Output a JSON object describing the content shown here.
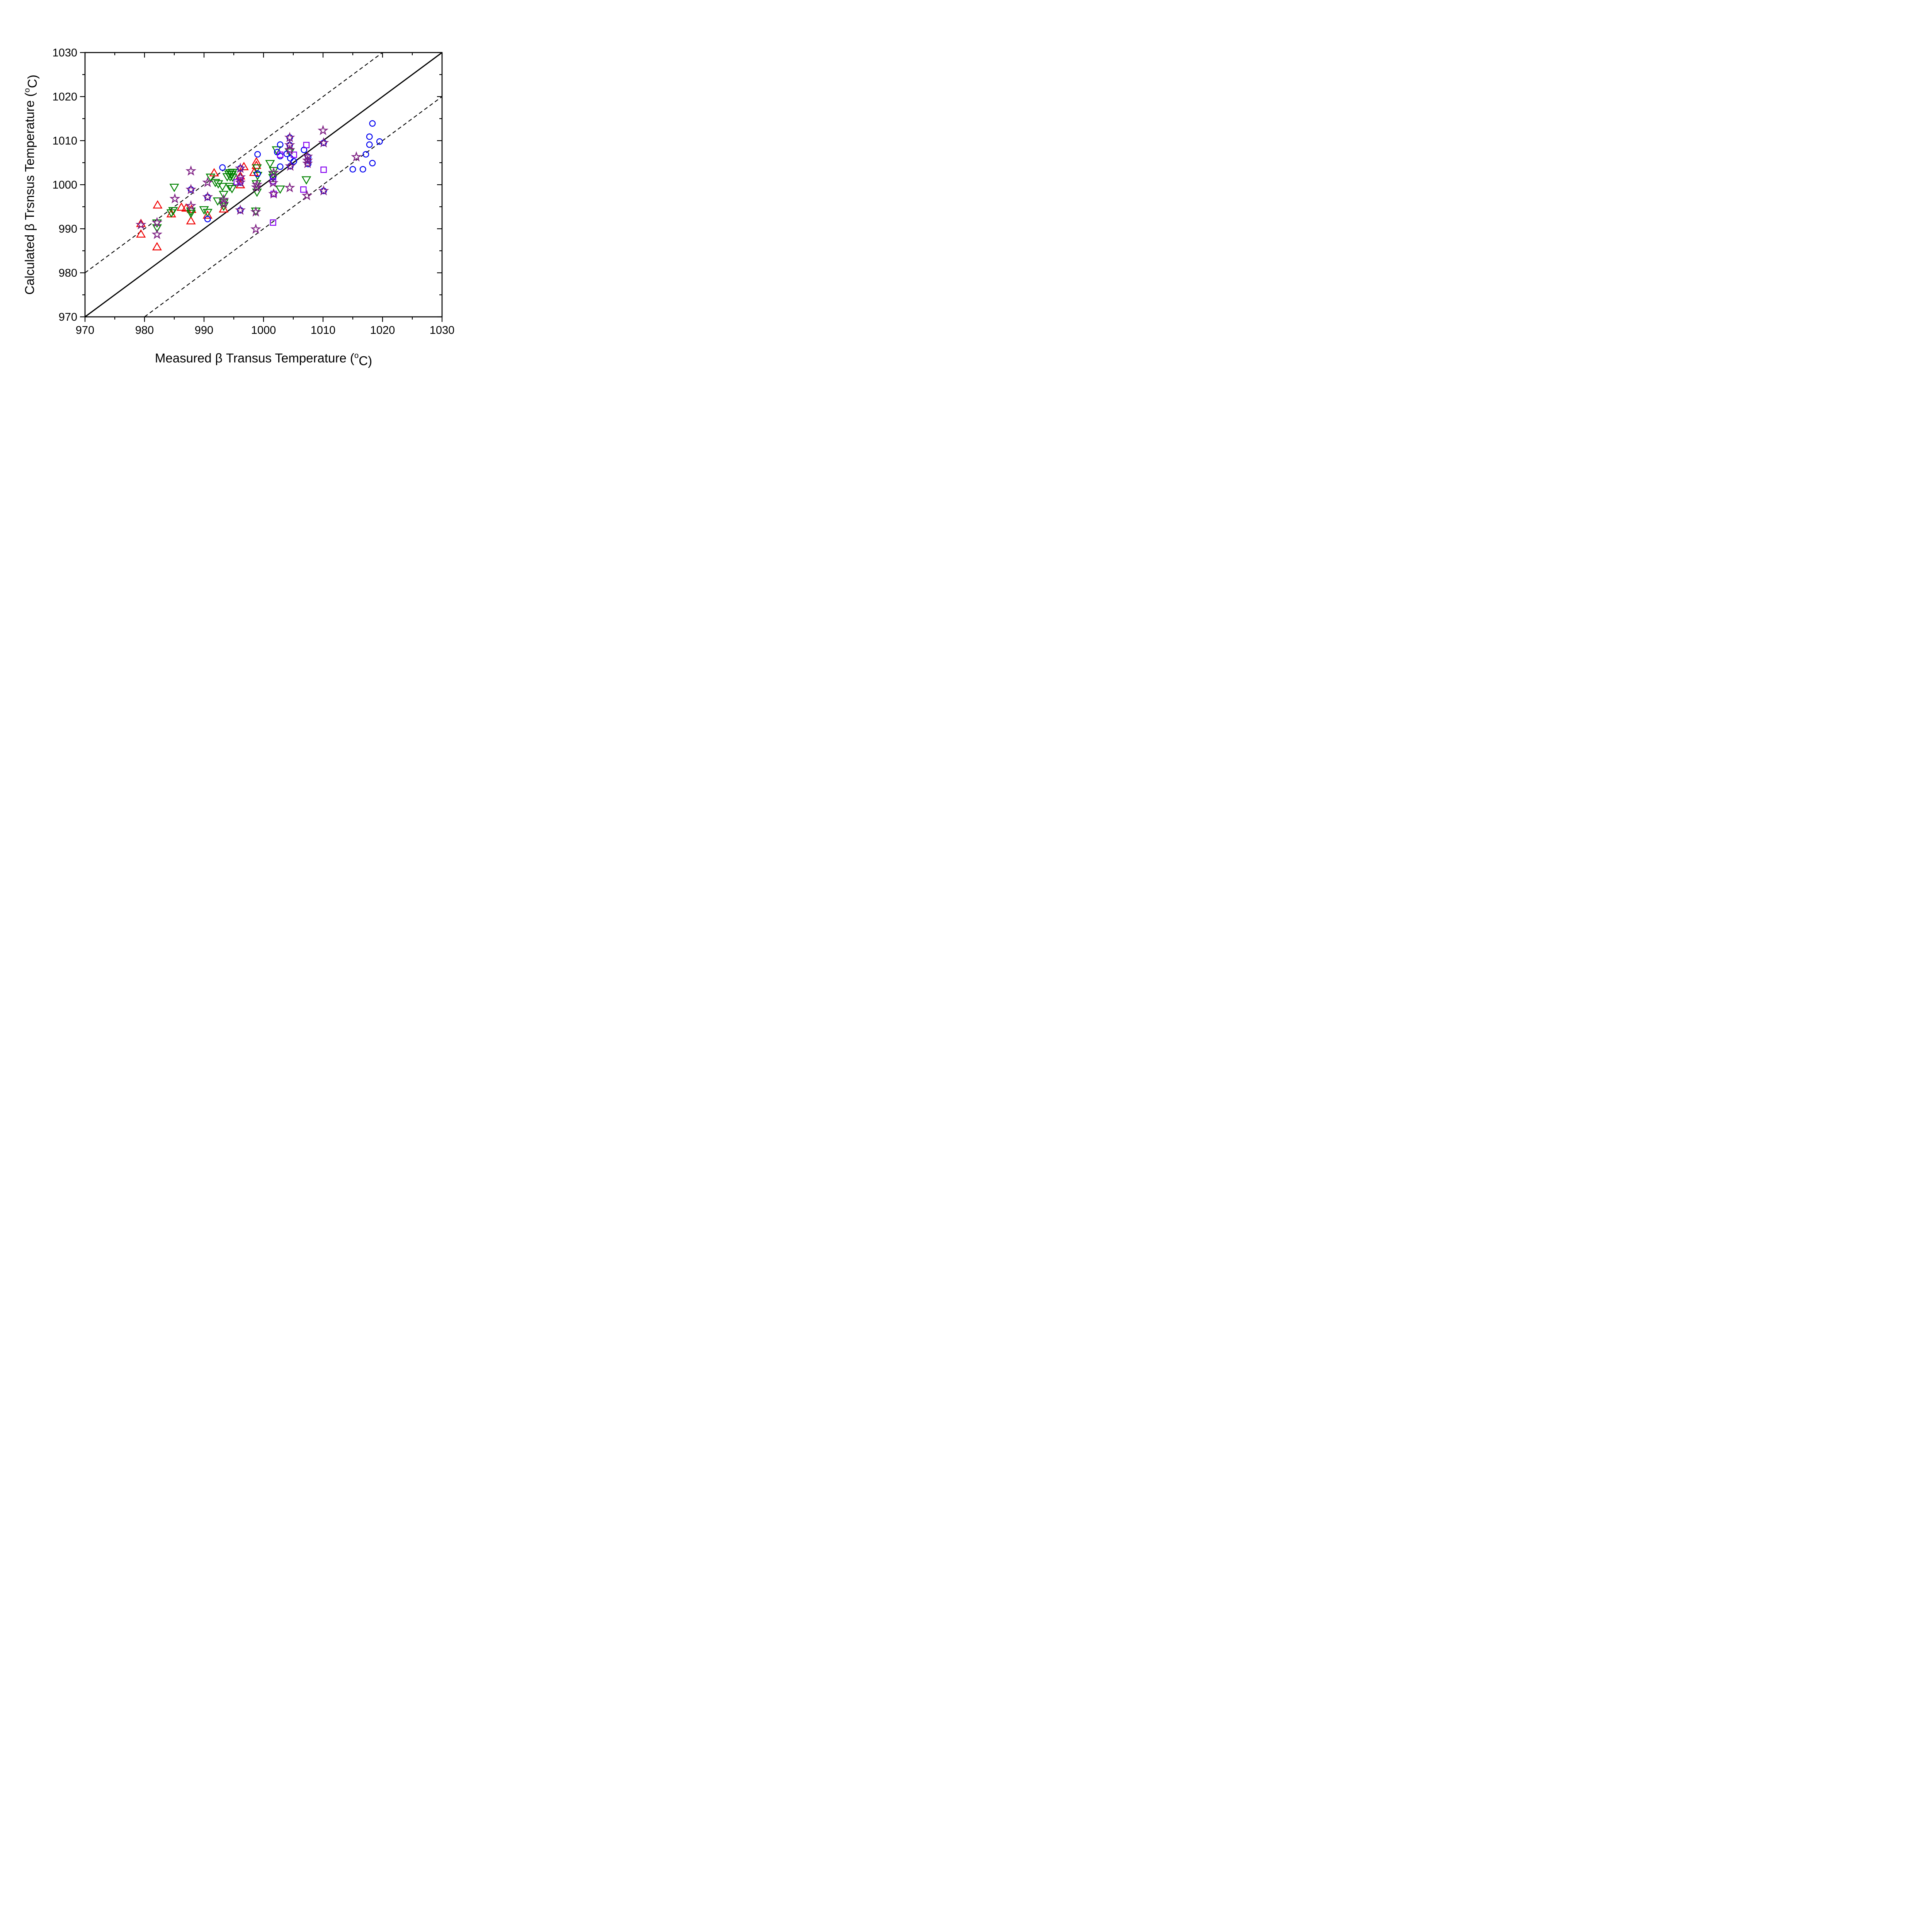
{
  "chart_data": {
    "type": "scatter",
    "title": "",
    "xlabel": {
      "prefix": "Measured β Transus Temperature (",
      "sup": "o",
      "suffix": "C)"
    },
    "ylabel": {
      "prefix": "Calculated β Trsnsus Temperature (",
      "sup": "o",
      "suffix": "C)"
    },
    "xlim": [
      970,
      1030
    ],
    "ylim": [
      970,
      1030
    ],
    "xticks": [
      970,
      980,
      990,
      1000,
      1010,
      1020,
      1030
    ],
    "yticks": [
      970,
      980,
      990,
      1000,
      1010,
      1020,
      1030
    ],
    "xtick_labels": [
      "970",
      "980",
      "990",
      "1000",
      "1010",
      "1020",
      "1030"
    ],
    "ytick_labels": [
      "970",
      "980",
      "990",
      "1000",
      "1010",
      "1020",
      "1030"
    ],
    "minor_step": 5,
    "grid": false,
    "legend": "none",
    "frame_color": "#000000",
    "reference_lines": [
      {
        "name": "identity-line",
        "style": "solid",
        "color": "#000000",
        "points": [
          [
            970,
            970
          ],
          [
            1030,
            1030
          ]
        ]
      },
      {
        "name": "upper-band-line",
        "style": "dashed",
        "color": "#000000",
        "points": [
          [
            970,
            980
          ],
          [
            1020,
            1030
          ]
        ]
      },
      {
        "name": "lower-band-line",
        "style": "dashed",
        "color": "#000000",
        "points": [
          [
            980,
            970
          ],
          [
            1030,
            1020
          ]
        ]
      }
    ],
    "series": [
      {
        "name": "red-up-triangles",
        "marker": "triangle-up",
        "color": "#f00000",
        "points": [
          [
            979.4,
            991.2
          ],
          [
            979.4,
            988.8
          ],
          [
            982.1,
            985.9
          ],
          [
            982.2,
            995.4
          ],
          [
            984.5,
            993.4
          ],
          [
            986.2,
            994.9
          ],
          [
            987.0,
            994.7
          ],
          [
            987.9,
            994.4
          ],
          [
            987.8,
            991.8
          ],
          [
            990.6,
            993.1
          ],
          [
            991.7,
            1002.7
          ],
          [
            993.3,
            994.5
          ],
          [
            996.7,
            1004.1
          ],
          [
            996.1,
            1002.0
          ],
          [
            996.1,
            1000.0
          ],
          [
            998.4,
            1002.8
          ],
          [
            998.8,
            1005.2
          ],
          [
            998.8,
            1004.4
          ]
        ]
      },
      {
        "name": "green-down-triangles",
        "marker": "triangle-down",
        "color": "#008200",
        "points": [
          [
            982.1,
            991.3
          ],
          [
            982.1,
            990.2
          ],
          [
            984.8,
            994.1
          ],
          [
            984.5,
            993.6
          ],
          [
            985.0,
            999.4
          ],
          [
            987.8,
            994.0
          ],
          [
            987.8,
            993.5
          ],
          [
            990.0,
            994.3
          ],
          [
            990.6,
            993.7
          ],
          [
            991.1,
            1001.7
          ],
          [
            991.9,
            1000.5
          ],
          [
            992.4,
            1000.2
          ],
          [
            992.3,
            996.3
          ],
          [
            993.3,
            995.9
          ],
          [
            993.3,
            995.1
          ],
          [
            993.1,
            999.6
          ],
          [
            994.3,
            999.6
          ],
          [
            994.7,
            999.1
          ],
          [
            993.3,
            997.8
          ],
          [
            994.4,
            1002.7
          ],
          [
            994.8,
            1002.8
          ],
          [
            994.2,
            1002.4
          ],
          [
            994.7,
            1002.3
          ],
          [
            994.4,
            1001.8
          ],
          [
            994.8,
            1001.7
          ],
          [
            993.9,
            1001.8
          ],
          [
            998.9,
            1003.8
          ],
          [
            999.0,
            1002.1
          ],
          [
            998.8,
            1000.2
          ],
          [
            998.9,
            998.3
          ],
          [
            998.7,
            994.0
          ],
          [
            1001.1,
            1004.8
          ],
          [
            1001.7,
            1003.2
          ],
          [
            1001.6,
            1002.3
          ],
          [
            1001.6,
            1001.6
          ],
          [
            1002.2,
            1007.9
          ],
          [
            1004.4,
            1007.4
          ],
          [
            1002.8,
            999.0
          ],
          [
            1007.2,
            1001.1
          ]
        ]
      },
      {
        "name": "blue-circles",
        "marker": "circle",
        "color": "#0000f0",
        "points": [
          [
            987.8,
            998.9
          ],
          [
            990.6,
            997.2
          ],
          [
            990.6,
            992.2
          ],
          [
            993.1,
            1003.9
          ],
          [
            996.1,
            1003.7
          ],
          [
            996.1,
            1000.5
          ],
          [
            996.1,
            994.2
          ],
          [
            999.0,
            1002.5
          ],
          [
            999.0,
            1006.9
          ],
          [
            1001.6,
            1001.7
          ],
          [
            1002.8,
            1009.1
          ],
          [
            1002.3,
            1007.4
          ],
          [
            1002.8,
            1006.5
          ],
          [
            1003.9,
            1007.0
          ],
          [
            1002.8,
            1004.1
          ],
          [
            1004.5,
            1006.0
          ],
          [
            1005.1,
            1005.3
          ],
          [
            1004.5,
            1004.2
          ],
          [
            1004.4,
            1010.7
          ],
          [
            1004.4,
            1009.0
          ],
          [
            1006.8,
            1007.9
          ],
          [
            1007.5,
            1006.3
          ],
          [
            1007.5,
            1005.5
          ],
          [
            1007.5,
            1004.7
          ],
          [
            1010.1,
            1009.5
          ],
          [
            1010.1,
            998.6
          ],
          [
            1015.0,
            1003.5
          ],
          [
            1016.7,
            1003.5
          ],
          [
            1017.2,
            1006.9
          ],
          [
            1017.8,
            1010.9
          ],
          [
            1017.8,
            1009.1
          ],
          [
            1018.3,
            1013.9
          ],
          [
            1018.3,
            1004.9
          ],
          [
            1019.5,
            1009.8
          ]
        ]
      },
      {
        "name": "violet-squares",
        "marker": "square",
        "color": "#8400f0",
        "points": [
          [
            995.5,
            1000.6
          ],
          [
            996.1,
            1001.0
          ],
          [
            1001.6,
            1000.8
          ],
          [
            1001.7,
            997.9
          ],
          [
            1002.8,
            1006.8
          ],
          [
            1005.1,
            1006.8
          ],
          [
            1006.7,
            998.9
          ],
          [
            1007.2,
            1009.0
          ],
          [
            1010.1,
            1003.4
          ],
          [
            1001.6,
            991.4
          ]
        ]
      },
      {
        "name": "purple-stars",
        "marker": "star",
        "color": "#7e2084",
        "points": [
          [
            979.4,
            990.9
          ],
          [
            982.1,
            991.4
          ],
          [
            982.1,
            988.7
          ],
          [
            985.1,
            996.8
          ],
          [
            987.8,
            1003.1
          ],
          [
            987.8,
            998.9
          ],
          [
            987.8,
            995.2
          ],
          [
            990.6,
            1000.5
          ],
          [
            990.6,
            997.2
          ],
          [
            993.3,
            996.6
          ],
          [
            993.3,
            995.7
          ],
          [
            996.1,
            1003.7
          ],
          [
            996.1,
            1001.7
          ],
          [
            996.1,
            1000.5
          ],
          [
            996.1,
            994.2
          ],
          [
            998.9,
            1000.0
          ],
          [
            998.8,
            999.4
          ],
          [
            998.7,
            993.8
          ],
          [
            998.7,
            989.9
          ],
          [
            1001.7,
            1002.7
          ],
          [
            1001.6,
            1000.4
          ],
          [
            1001.7,
            997.9
          ],
          [
            1004.4,
            1010.7
          ],
          [
            1004.4,
            1009.0
          ],
          [
            1004.4,
            1007.9
          ],
          [
            1004.5,
            1004.2
          ],
          [
            1004.4,
            999.3
          ],
          [
            1007.4,
            1006.4
          ],
          [
            1007.4,
            1005.5
          ],
          [
            1007.4,
            1004.8
          ],
          [
            1007.3,
            997.5
          ],
          [
            1010.0,
            1012.3
          ],
          [
            1010.1,
            1009.5
          ],
          [
            1010.1,
            998.6
          ],
          [
            1015.6,
            1006.3
          ]
        ]
      }
    ]
  },
  "colors": {
    "background": "#ffffff",
    "axis": "#000000"
  }
}
